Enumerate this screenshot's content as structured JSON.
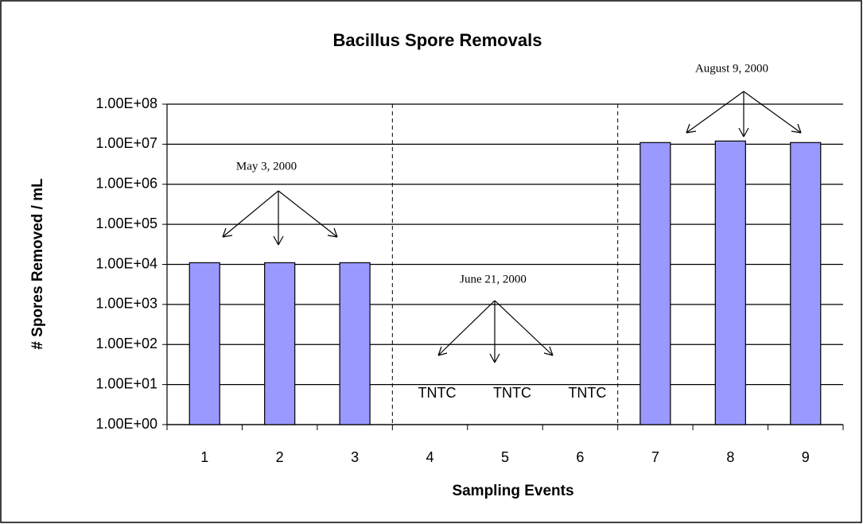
{
  "chart_data": {
    "type": "bar",
    "title": "Bacillus Spore Removals",
    "x_label": "Sampling Events",
    "y_label": "# Spores Removed / mL",
    "categories": [
      "1",
      "2",
      "3",
      "4",
      "5",
      "6",
      "7",
      "8",
      "9"
    ],
    "values": [
      11000,
      11000,
      11000,
      null,
      null,
      null,
      11000000,
      12000000,
      11000000
    ],
    "value_labels": [
      null,
      null,
      null,
      "TNTC",
      "TNTC",
      "TNTC",
      null,
      null,
      null
    ],
    "color": "#9999ff",
    "log_scale": true,
    "ylim": [
      1,
      100000000
    ],
    "yticks": [
      {
        "value": 1,
        "label": "1.00E+00"
      },
      {
        "value": 10,
        "label": "1.00E+01"
      },
      {
        "value": 100,
        "label": "1.00E+02"
      },
      {
        "value": 1000,
        "label": "1.00E+03"
      },
      {
        "value": 10000,
        "label": "1.00E+04"
      },
      {
        "value": 100000,
        "label": "1.00E+05"
      },
      {
        "value": 1000000,
        "label": "1.00E+06"
      },
      {
        "value": 10000000,
        "label": "1.00E+07"
      },
      {
        "value": 100000000,
        "label": "1.00E+08"
      }
    ],
    "grid": true,
    "annotations": [
      "May 3, 2000",
      "June 21, 2000",
      "August 9, 2000"
    ]
  }
}
